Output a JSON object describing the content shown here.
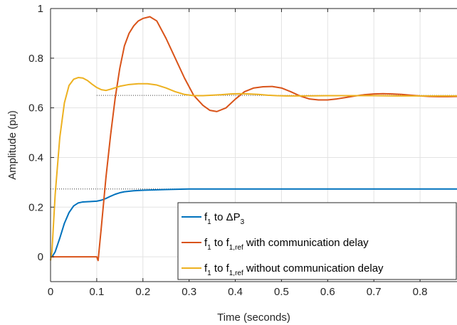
{
  "chart_data": {
    "type": "line",
    "title": "",
    "xlabel": "Time (seconds)",
    "ylabel": "Amplitude (pu)",
    "xlim": [
      0,
      0.88
    ],
    "ylim": [
      -0.1,
      1
    ],
    "xticks": [
      "0",
      "0.1",
      "0.2",
      "0.3",
      "0.4",
      "0.5",
      "0.6",
      "0.7",
      "0.8"
    ],
    "yticks": [
      "0",
      "0.2",
      "0.4",
      "0.6",
      "0.8",
      "1"
    ],
    "grid": true,
    "legend_position": "bottom-right",
    "reference_lines": [
      {
        "y": 0.65,
        "style": "dotted",
        "x_start": 0.1
      },
      {
        "y": 0.273,
        "style": "dotted",
        "x_start": 0
      }
    ],
    "series": [
      {
        "name": "f1 to ΔP3",
        "legend": {
          "pre": "f",
          "sub1": "1",
          "mid": " to ΔP",
          "sub2": "3",
          "post": ""
        },
        "color": "#0072BD",
        "points": [
          [
            0,
            0
          ],
          [
            0.005,
            0.005
          ],
          [
            0.01,
            0.02
          ],
          [
            0.02,
            0.075
          ],
          [
            0.03,
            0.135
          ],
          [
            0.04,
            0.178
          ],
          [
            0.05,
            0.205
          ],
          [
            0.06,
            0.217
          ],
          [
            0.07,
            0.221
          ],
          [
            0.08,
            0.222
          ],
          [
            0.09,
            0.223
          ],
          [
            0.1,
            0.224
          ],
          [
            0.11,
            0.228
          ],
          [
            0.12,
            0.235
          ],
          [
            0.13,
            0.244
          ],
          [
            0.14,
            0.252
          ],
          [
            0.15,
            0.258
          ],
          [
            0.16,
            0.262
          ],
          [
            0.18,
            0.266
          ],
          [
            0.2,
            0.268
          ],
          [
            0.25,
            0.271
          ],
          [
            0.3,
            0.273
          ],
          [
            0.4,
            0.273
          ],
          [
            0.5,
            0.273
          ],
          [
            0.6,
            0.273
          ],
          [
            0.7,
            0.273
          ],
          [
            0.8,
            0.273
          ],
          [
            0.88,
            0.273
          ]
        ]
      },
      {
        "name": "f1 to f1,ref with communication delay",
        "legend": {
          "pre": "f",
          "sub1": "1",
          "mid": " to f",
          "sub2": "1,ref",
          "post": " with communication delay"
        },
        "color": "#D95319",
        "points": [
          [
            0,
            0
          ],
          [
            0.1,
            0
          ],
          [
            0.103,
            -0.015
          ],
          [
            0.11,
            0.12
          ],
          [
            0.12,
            0.32
          ],
          [
            0.13,
            0.49
          ],
          [
            0.14,
            0.64
          ],
          [
            0.15,
            0.76
          ],
          [
            0.16,
            0.85
          ],
          [
            0.17,
            0.9
          ],
          [
            0.18,
            0.93
          ],
          [
            0.19,
            0.95
          ],
          [
            0.2,
            0.96
          ],
          [
            0.215,
            0.967
          ],
          [
            0.23,
            0.95
          ],
          [
            0.25,
            0.88
          ],
          [
            0.27,
            0.8
          ],
          [
            0.29,
            0.72
          ],
          [
            0.31,
            0.65
          ],
          [
            0.33,
            0.61
          ],
          [
            0.345,
            0.59
          ],
          [
            0.36,
            0.585
          ],
          [
            0.38,
            0.6
          ],
          [
            0.4,
            0.635
          ],
          [
            0.42,
            0.665
          ],
          [
            0.44,
            0.68
          ],
          [
            0.46,
            0.685
          ],
          [
            0.48,
            0.686
          ],
          [
            0.5,
            0.68
          ],
          [
            0.52,
            0.665
          ],
          [
            0.54,
            0.648
          ],
          [
            0.56,
            0.636
          ],
          [
            0.58,
            0.632
          ],
          [
            0.6,
            0.632
          ],
          [
            0.62,
            0.636
          ],
          [
            0.64,
            0.642
          ],
          [
            0.66,
            0.648
          ],
          [
            0.68,
            0.653
          ],
          [
            0.7,
            0.656
          ],
          [
            0.72,
            0.657
          ],
          [
            0.74,
            0.656
          ],
          [
            0.76,
            0.654
          ],
          [
            0.78,
            0.651
          ],
          [
            0.8,
            0.648
          ],
          [
            0.82,
            0.646
          ],
          [
            0.84,
            0.645
          ],
          [
            0.86,
            0.645
          ],
          [
            0.88,
            0.646
          ]
        ]
      },
      {
        "name": "f1 to f1,ref without communication delay",
        "legend": {
          "pre": "f",
          "sub1": "1",
          "mid": " to f",
          "sub2": "1,ref",
          "post": " without communication delay"
        },
        "color": "#EDB120",
        "points": [
          [
            0,
            -0.015
          ],
          [
            0.003,
            0.02
          ],
          [
            0.01,
            0.25
          ],
          [
            0.02,
            0.48
          ],
          [
            0.03,
            0.62
          ],
          [
            0.04,
            0.69
          ],
          [
            0.05,
            0.715
          ],
          [
            0.06,
            0.722
          ],
          [
            0.07,
            0.72
          ],
          [
            0.08,
            0.71
          ],
          [
            0.09,
            0.695
          ],
          [
            0.1,
            0.682
          ],
          [
            0.11,
            0.673
          ],
          [
            0.12,
            0.67
          ],
          [
            0.13,
            0.675
          ],
          [
            0.15,
            0.687
          ],
          [
            0.17,
            0.694
          ],
          [
            0.19,
            0.697
          ],
          [
            0.21,
            0.697
          ],
          [
            0.23,
            0.692
          ],
          [
            0.25,
            0.68
          ],
          [
            0.27,
            0.665
          ],
          [
            0.29,
            0.654
          ],
          [
            0.31,
            0.649
          ],
          [
            0.33,
            0.649
          ],
          [
            0.35,
            0.651
          ],
          [
            0.37,
            0.653
          ],
          [
            0.39,
            0.656
          ],
          [
            0.41,
            0.657
          ],
          [
            0.43,
            0.656
          ],
          [
            0.45,
            0.654
          ],
          [
            0.47,
            0.651
          ],
          [
            0.49,
            0.649
          ],
          [
            0.51,
            0.648
          ],
          [
            0.55,
            0.648
          ],
          [
            0.6,
            0.649
          ],
          [
            0.65,
            0.649
          ],
          [
            0.7,
            0.649
          ],
          [
            0.75,
            0.648
          ],
          [
            0.8,
            0.648
          ],
          [
            0.88,
            0.648
          ]
        ]
      }
    ]
  }
}
